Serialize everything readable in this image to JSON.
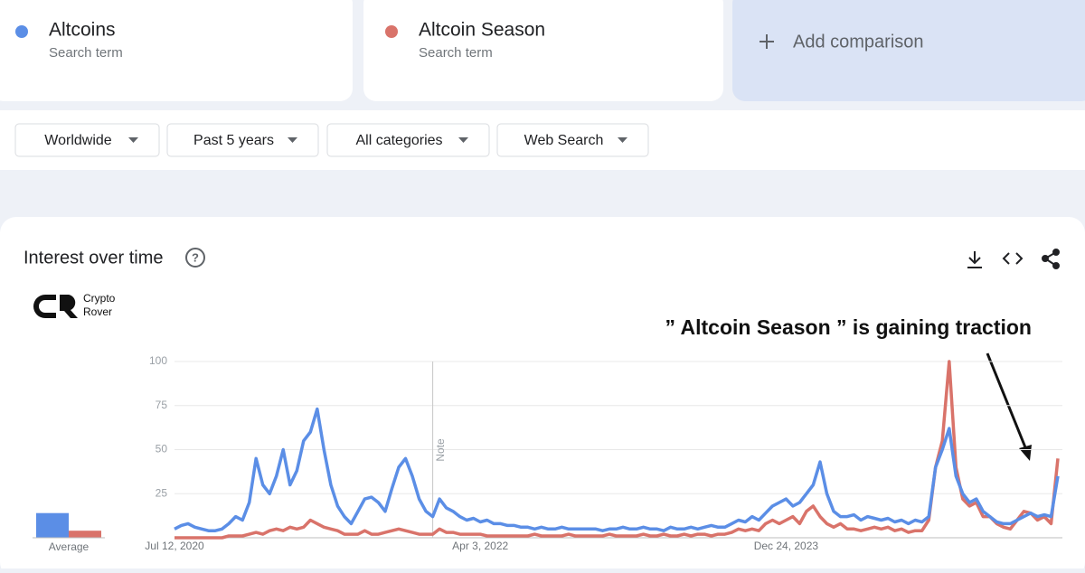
{
  "terms": [
    {
      "name": "Altcoins",
      "sub": "Search term",
      "color": "#5b8ee6"
    },
    {
      "name": "Altcoin Season",
      "sub": "Search term",
      "color": "#d9736a"
    }
  ],
  "add_comparison": "Add comparison",
  "filters": [
    "Worldwide",
    "Past 5 years",
    "All categories",
    "Web Search"
  ],
  "panel_title": "Interest over time",
  "logo": [
    "Crypto",
    "Rover"
  ],
  "annotation": "” Altcoin Season ” is gaining traction",
  "chart_data": {
    "type": "line",
    "categories": [
      "Jul 12, 2020",
      null,
      null,
      null,
      null,
      null,
      null,
      null,
      null,
      null,
      null,
      null,
      null,
      null,
      null,
      null,
      null,
      null,
      null,
      null,
      null,
      null,
      null,
      null,
      null,
      null,
      null,
      null,
      null,
      null,
      null,
      null,
      null,
      null,
      null,
      null,
      null,
      null,
      null,
      null,
      null,
      null,
      null,
      null,
      null,
      "Apr 3, 2022",
      null,
      null,
      null,
      null,
      null,
      null,
      null,
      null,
      null,
      null,
      null,
      null,
      null,
      null,
      null,
      null,
      null,
      null,
      null,
      null,
      null,
      null,
      null,
      null,
      null,
      null,
      null,
      null,
      null,
      null,
      null,
      null,
      null,
      null,
      null,
      null,
      null,
      null,
      null,
      null,
      null,
      null,
      null,
      null,
      "Dec 24, 2023",
      null,
      null,
      null,
      null,
      null,
      null,
      null,
      null,
      null,
      null,
      null,
      null,
      null,
      null,
      null,
      null,
      null,
      null,
      null,
      null,
      null,
      null,
      null,
      null,
      null,
      null,
      null,
      null,
      null,
      null,
      null,
      null,
      null,
      null,
      null,
      null,
      null,
      null,
      null,
      null
    ],
    "series": [
      {
        "name": "Altcoins",
        "color": "#5b8ee6",
        "values": [
          5,
          7,
          8,
          6,
          5,
          4,
          4,
          5,
          8,
          12,
          10,
          20,
          45,
          30,
          25,
          35,
          50,
          30,
          38,
          55,
          60,
          73,
          50,
          30,
          18,
          12,
          8,
          15,
          22,
          23,
          20,
          15,
          28,
          40,
          45,
          35,
          22,
          15,
          12,
          22,
          17,
          15,
          12,
          10,
          11,
          9,
          10,
          8,
          8,
          7,
          7,
          6,
          6,
          5,
          6,
          5,
          5,
          6,
          5,
          5,
          5,
          5,
          5,
          4,
          5,
          5,
          6,
          5,
          5,
          6,
          5,
          5,
          4,
          6,
          5,
          5,
          6,
          5,
          6,
          7,
          6,
          6,
          8,
          10,
          9,
          12,
          10,
          14,
          18,
          20,
          22,
          18,
          20,
          25,
          30,
          43,
          25,
          15,
          12,
          12,
          13,
          10,
          12,
          11,
          10,
          11,
          9,
          10,
          8,
          10,
          9,
          12,
          40,
          50,
          62,
          35,
          25,
          20,
          22,
          15,
          12,
          9,
          8,
          8,
          10,
          12,
          14,
          12,
          13,
          12,
          35
        ]
      },
      {
        "name": "Altcoin Season",
        "color": "#d9736a",
        "values": [
          0,
          0,
          0,
          0,
          0,
          0,
          0,
          0,
          1,
          1,
          1,
          2,
          3,
          2,
          4,
          5,
          4,
          6,
          5,
          6,
          10,
          8,
          6,
          5,
          4,
          2,
          2,
          2,
          4,
          2,
          2,
          3,
          4,
          5,
          4,
          3,
          2,
          2,
          2,
          5,
          3,
          3,
          2,
          2,
          2,
          2,
          1,
          1,
          1,
          1,
          1,
          1,
          1,
          2,
          1,
          1,
          1,
          1,
          2,
          1,
          1,
          1,
          1,
          1,
          2,
          1,
          1,
          1,
          1,
          2,
          1,
          1,
          2,
          1,
          1,
          2,
          1,
          2,
          2,
          1,
          2,
          2,
          3,
          5,
          4,
          5,
          4,
          8,
          10,
          8,
          10,
          12,
          8,
          15,
          18,
          12,
          8,
          6,
          8,
          5,
          5,
          4,
          5,
          6,
          5,
          6,
          4,
          5,
          3,
          4,
          4,
          10,
          40,
          55,
          100,
          40,
          22,
          18,
          20,
          12,
          12,
          8,
          6,
          5,
          10,
          15,
          14,
          10,
          12,
          8,
          45
        ]
      }
    ],
    "ylim": [
      0,
      100
    ],
    "yticks": [
      25,
      50,
      75,
      100
    ],
    "grid": true,
    "note": "Note",
    "average": {
      "label": "Average",
      "values": [
        14,
        4
      ]
    }
  }
}
